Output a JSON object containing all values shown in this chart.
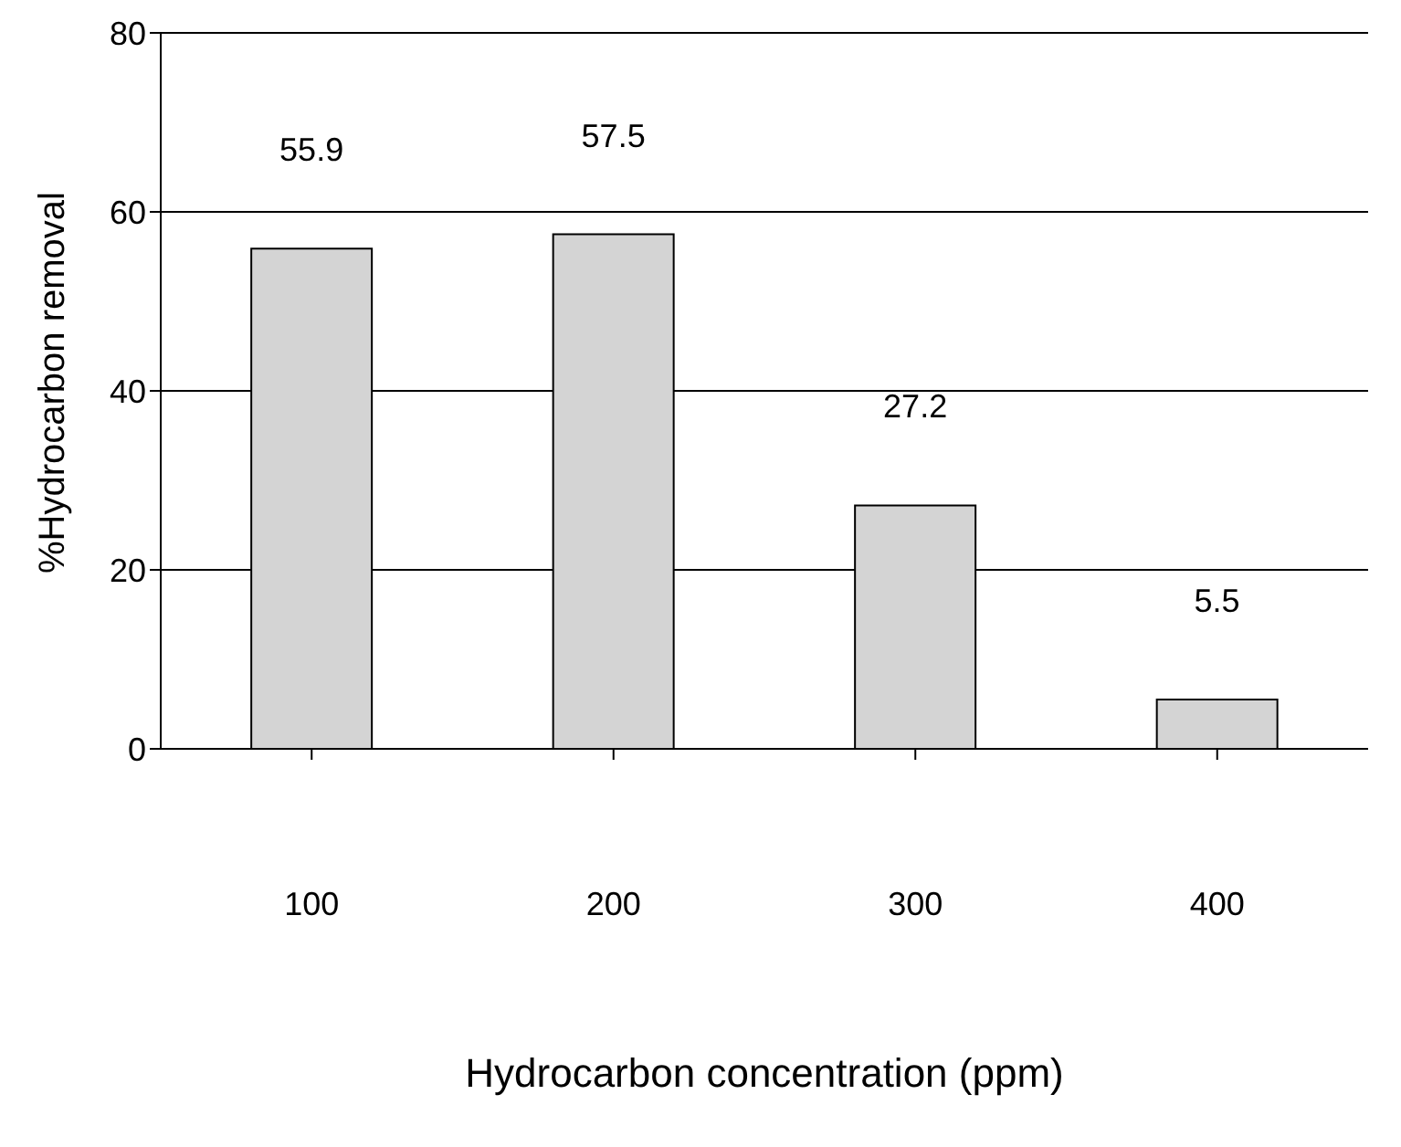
{
  "chart_data": {
    "type": "bar",
    "xlabel": "Hydrocarbon concentration (ppm)",
    "ylabel": "%Hydrocarbon removal",
    "categories": [
      "100",
      "200",
      "300",
      "400"
    ],
    "values": [
      55.9,
      57.5,
      27.2,
      5.5
    ],
    "color": "#d4d4d4",
    "ylim": [
      0,
      80
    ],
    "yticks": [
      0,
      20,
      40,
      60,
      80
    ],
    "grid": "y",
    "data_labels": true
  }
}
